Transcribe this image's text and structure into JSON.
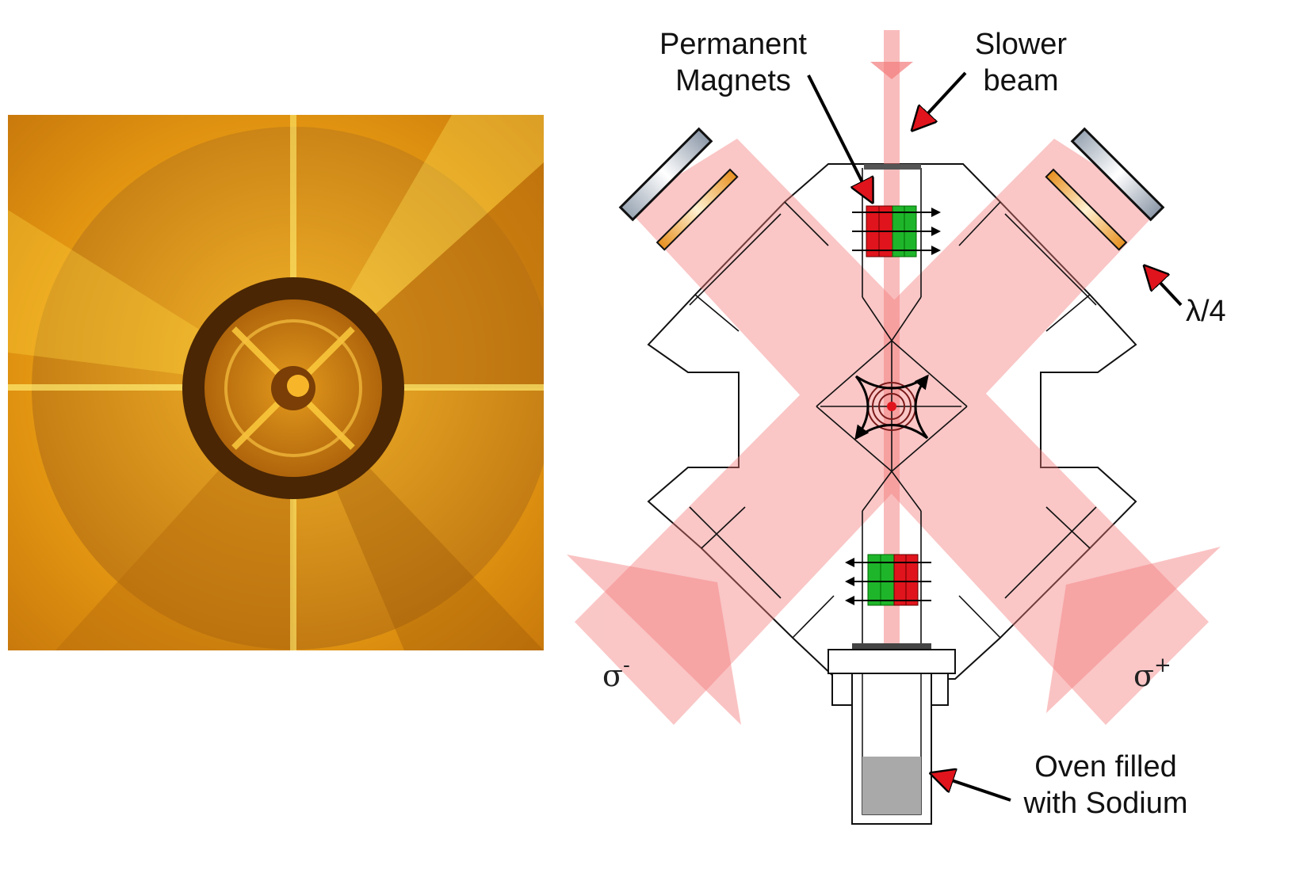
{
  "photo": {
    "alt": "Photograph of the trap chamber interior (golden reflection)"
  },
  "labels": {
    "permanent_magnets_1": "Permanent",
    "permanent_magnets_2": "Magnets",
    "slower_beam_1": "Slower",
    "slower_beam_2": "beam",
    "lambda_quarter": "λ/4",
    "oven_1": "Oven filled",
    "oven_2": "with Sodium",
    "sigma_minus_base": "σ",
    "sigma_minus_sup": "-",
    "sigma_plus_base": "σ",
    "sigma_plus_sup": "+"
  },
  "colors": {
    "beam": "#f47a7a",
    "magnet_red": "#e0141c",
    "magnet_green": "#1eb52a",
    "waveplate": "#f3b35a",
    "oven_fill": "#a9a9a9",
    "arrow_head": "#e0141c"
  }
}
